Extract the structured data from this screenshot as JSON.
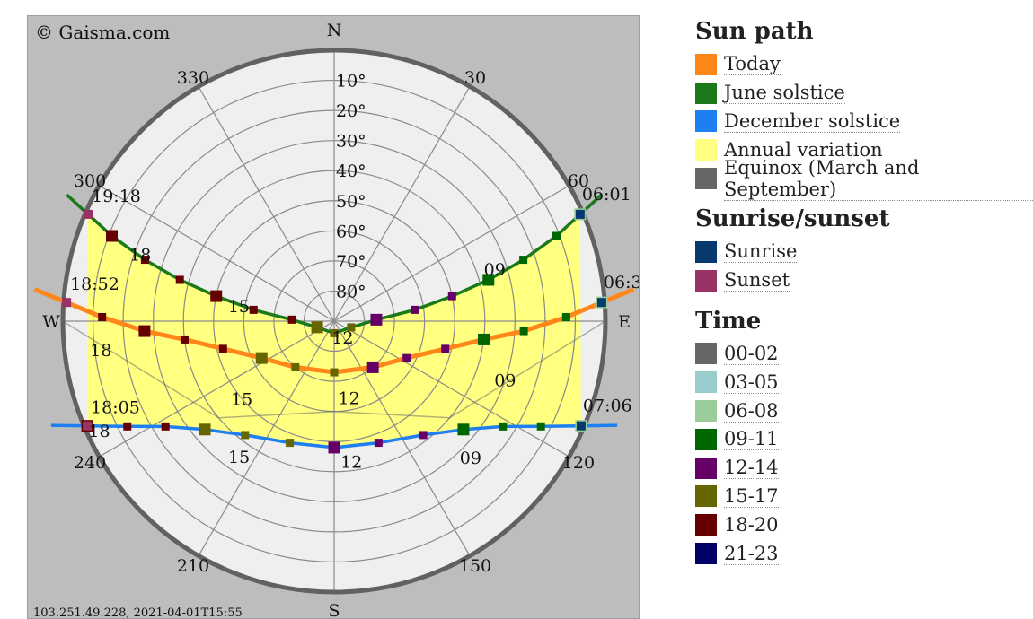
{
  "chart_data": {
    "type": "polar sun path",
    "copyright": "© Gaisma.com",
    "footer": "103.251.49.228, 2021-04-01T15:55",
    "directions": {
      "N": "N",
      "S": "S",
      "E": "E",
      "W": "W"
    },
    "azimuth_labels": [
      {
        "az": 30,
        "text": "30"
      },
      {
        "az": 60,
        "text": "60"
      },
      {
        "az": 120,
        "text": "120"
      },
      {
        "az": 150,
        "text": "150"
      },
      {
        "az": 210,
        "text": "210"
      },
      {
        "az": 240,
        "text": "240"
      },
      {
        "az": 300,
        "text": "300"
      },
      {
        "az": 330,
        "text": "330"
      }
    ],
    "altitude_labels": [
      "10°",
      "20°",
      "30°",
      "40°",
      "50°",
      "60°",
      "70°",
      "80°"
    ],
    "colors": {
      "today": "#ff8619",
      "june": "#1a7a1a",
      "december": "#1e7ff0",
      "annual": "#ffff80",
      "equinox": "#666666",
      "sunrise": "#063a6e",
      "sunset": "#993366",
      "plot_bg": "#bdbdbd",
      "disk": "#efefef",
      "rim": "#616161"
    },
    "paths": [
      {
        "key": "june",
        "name": "June solstice",
        "color": "#1a7a1a",
        "sunrise": {
          "label": "06:01",
          "az": 66.5,
          "alt": 1
        },
        "sunset": {
          "label": "19:18",
          "az": 293.5,
          "alt": 1
        },
        "points": [
          {
            "az": 66.5,
            "alt": 1
          },
          {
            "az": 69,
            "alt": 11
          },
          {
            "az": 72,
            "alt": 24
          },
          {
            "az": 75,
            "alt": 37
          },
          {
            "az": 78,
            "alt": 50
          },
          {
            "az": 82,
            "alt": 63
          },
          {
            "az": 88,
            "alt": 76
          },
          {
            "az": 110,
            "alt": 84
          },
          {
            "az": 180,
            "alt": 86
          },
          {
            "az": 250,
            "alt": 84
          },
          {
            "az": 272,
            "alt": 76
          },
          {
            "az": 278,
            "alt": 63
          },
          {
            "az": 282,
            "alt": 50
          },
          {
            "az": 285,
            "alt": 37
          },
          {
            "az": 288,
            "alt": 24
          },
          {
            "az": 291,
            "alt": 11
          },
          {
            "az": 293.5,
            "alt": 1
          }
        ],
        "hour_labels": [
          {
            "text": "09",
            "az": 72,
            "alt": 34
          },
          {
            "text": "12",
            "az": 152,
            "alt": 84
          },
          {
            "text": "15",
            "az": 279,
            "alt": 58
          },
          {
            "text": "18",
            "az": 289,
            "alt": 22
          }
        ]
      },
      {
        "key": "today",
        "name": "Today",
        "color": "#ff8619",
        "sunrise": {
          "label": "06:3",
          "az": 86,
          "alt": 1
        },
        "sunset": {
          "label": "18:52",
          "az": 274,
          "alt": 1
        },
        "points": [
          {
            "az": 86,
            "alt": 1
          },
          {
            "az": 89,
            "alt": 13
          },
          {
            "az": 93,
            "alt": 27
          },
          {
            "az": 97,
            "alt": 40
          },
          {
            "az": 104,
            "alt": 52
          },
          {
            "az": 117,
            "alt": 63
          },
          {
            "az": 140,
            "alt": 70
          },
          {
            "az": 180,
            "alt": 73
          },
          {
            "az": 220,
            "alt": 70
          },
          {
            "az": 243,
            "alt": 63
          },
          {
            "az": 256,
            "alt": 52
          },
          {
            "az": 263,
            "alt": 40
          },
          {
            "az": 267,
            "alt": 27
          },
          {
            "az": 271,
            "alt": 13
          },
          {
            "az": 274,
            "alt": 1
          }
        ],
        "hour_labels": [
          {
            "text": "09",
            "az": 109,
            "alt": 30
          },
          {
            "text": "12",
            "az": 169,
            "alt": 64
          },
          {
            "text": "15",
            "az": 230,
            "alt": 50
          },
          {
            "text": "18",
            "az": 263,
            "alt": 12
          }
        ]
      },
      {
        "key": "december",
        "name": "December solstice",
        "color": "#1e7ff0",
        "sunrise": {
          "label": "07:06",
          "az": 113,
          "alt": 1
        },
        "sunset": {
          "label": "18:05",
          "az": 247,
          "alt": 1
        },
        "points": [
          {
            "az": 113,
            "alt": 1
          },
          {
            "az": 117,
            "alt": 13
          },
          {
            "az": 122,
            "alt": 24
          },
          {
            "az": 130,
            "alt": 34
          },
          {
            "az": 142,
            "alt": 42
          },
          {
            "az": 160,
            "alt": 47
          },
          {
            "az": 180,
            "alt": 48
          },
          {
            "az": 200,
            "alt": 47
          },
          {
            "az": 218,
            "alt": 42
          },
          {
            "az": 230,
            "alt": 34
          },
          {
            "az": 238,
            "alt": 24
          },
          {
            "az": 243,
            "alt": 13
          },
          {
            "az": 247,
            "alt": 1
          }
        ],
        "hour_labels": [
          {
            "text": "09",
            "az": 135,
            "alt": 26
          },
          {
            "text": "12",
            "az": 173,
            "alt": 43
          },
          {
            "text": "15",
            "az": 215,
            "alt": 35
          },
          {
            "text": "18",
            "az": 245,
            "alt": 4
          }
        ]
      }
    ]
  },
  "legend": {
    "sun_path": {
      "title": "Sun path",
      "items": [
        {
          "label": "Today",
          "color": "#ff8619"
        },
        {
          "label": "June solstice",
          "color": "#1a7a1a"
        },
        {
          "label": "December solstice",
          "color": "#1e7ff0"
        },
        {
          "label": "Annual variation",
          "color": "#ffff80"
        },
        {
          "label": "Equinox (March and September)",
          "color": "#666666"
        }
      ]
    },
    "sunrise_sunset": {
      "title": "Sunrise/sunset",
      "items": [
        {
          "label": "Sunrise",
          "color": "#063a6e"
        },
        {
          "label": "Sunset",
          "color": "#993366"
        }
      ]
    },
    "time": {
      "title": "Time",
      "items": [
        {
          "label": "00-02",
          "color": "#666666"
        },
        {
          "label": "03-05",
          "color": "#99cccc"
        },
        {
          "label": "06-08",
          "color": "#99cc99"
        },
        {
          "label": "09-11",
          "color": "#006600"
        },
        {
          "label": "12-14",
          "color": "#660066"
        },
        {
          "label": "15-17",
          "color": "#666600"
        },
        {
          "label": "18-20",
          "color": "#660000"
        },
        {
          "label": "21-23",
          "color": "#000066"
        }
      ]
    }
  }
}
